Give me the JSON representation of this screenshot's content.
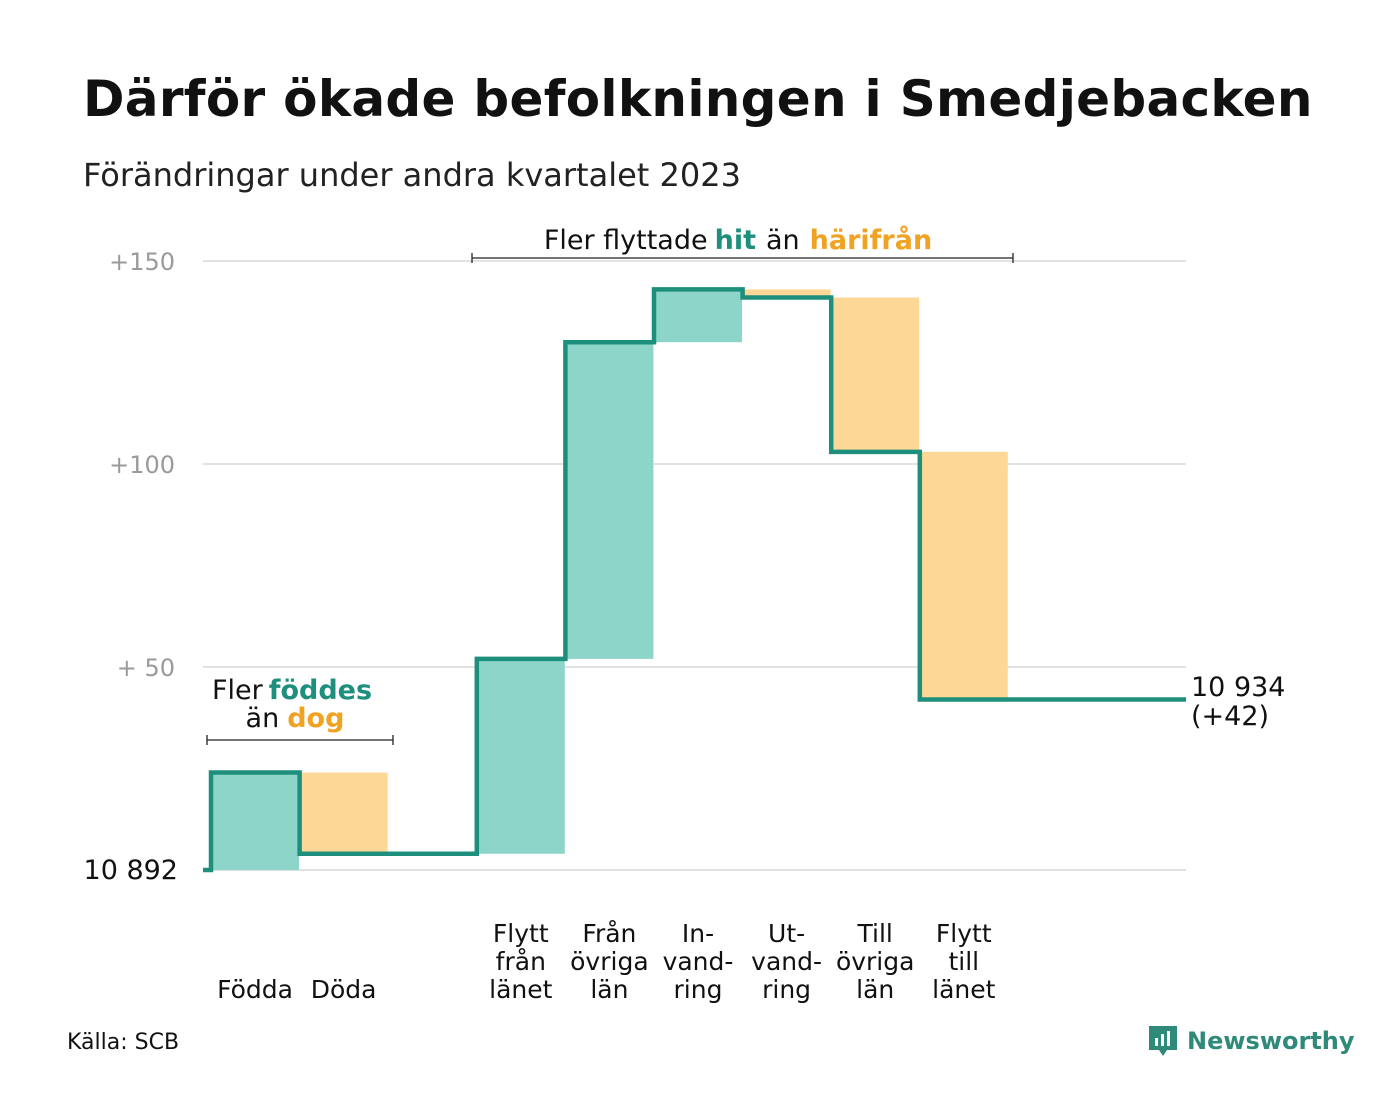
{
  "title": "Därför ökade befolkningen i Smedjebacken",
  "subtitle": "Förändringar under andra kvartalet 2023",
  "source": "Källa: SCB",
  "brand": "Newsworthy",
  "colors": {
    "increase_fill": "#8dd5c9",
    "decrease_fill": "#fcd795",
    "line": "#1e8f7d",
    "grid": "#e2e2e2",
    "tick": "#9a9a9a",
    "accent_teal": "#1e8f7d",
    "accent_orange": "#f0a323"
  },
  "annotations": {
    "births": {
      "line1_plain": "Fler",
      "line1_teal": "föddes",
      "line2_plain": "än",
      "line2_orange": "dog"
    },
    "moves": {
      "plain1": "Fler flyttade",
      "teal": "hit",
      "plain2": "än",
      "orange": "härifrån"
    }
  },
  "end_label": {
    "value": "10 934",
    "change": "(+42)"
  },
  "chart_data": {
    "type": "waterfall",
    "title": "Därför ökade befolkningen i Smedjebacken",
    "subtitle": "Förändringar under andra kvartalet 2023",
    "start_value": 10892,
    "end_value": 10934,
    "ylim": [
      0,
      150
    ],
    "yticks": [
      {
        "value": 0,
        "label": "10  892"
      },
      {
        "value": 50,
        "label": "+  50"
      },
      {
        "value": 100,
        "label": "+100"
      },
      {
        "value": 150,
        "label": "+150"
      }
    ],
    "grid": true,
    "steps": [
      {
        "label": [
          "Födda"
        ],
        "delta": 24,
        "type": "increase"
      },
      {
        "label": [
          "Döda"
        ],
        "delta": -20,
        "type": "decrease"
      },
      {
        "label": [],
        "delta": 0,
        "type": "spacer"
      },
      {
        "label": [
          "Flytt",
          "från",
          "länet"
        ],
        "delta": 48,
        "type": "increase"
      },
      {
        "label": [
          "Från",
          "övriga",
          "län"
        ],
        "delta": 78,
        "type": "increase"
      },
      {
        "label": [
          "In-",
          "vand-",
          "ring"
        ],
        "delta": 13,
        "type": "increase"
      },
      {
        "label": [
          "Ut-",
          "vand-",
          "ring"
        ],
        "delta": -2,
        "type": "decrease"
      },
      {
        "label": [
          "Till",
          "övriga",
          "län"
        ],
        "delta": -38,
        "type": "decrease"
      },
      {
        "label": [
          "Flytt",
          "till",
          "länet"
        ],
        "delta": -61,
        "type": "decrease"
      }
    ]
  }
}
